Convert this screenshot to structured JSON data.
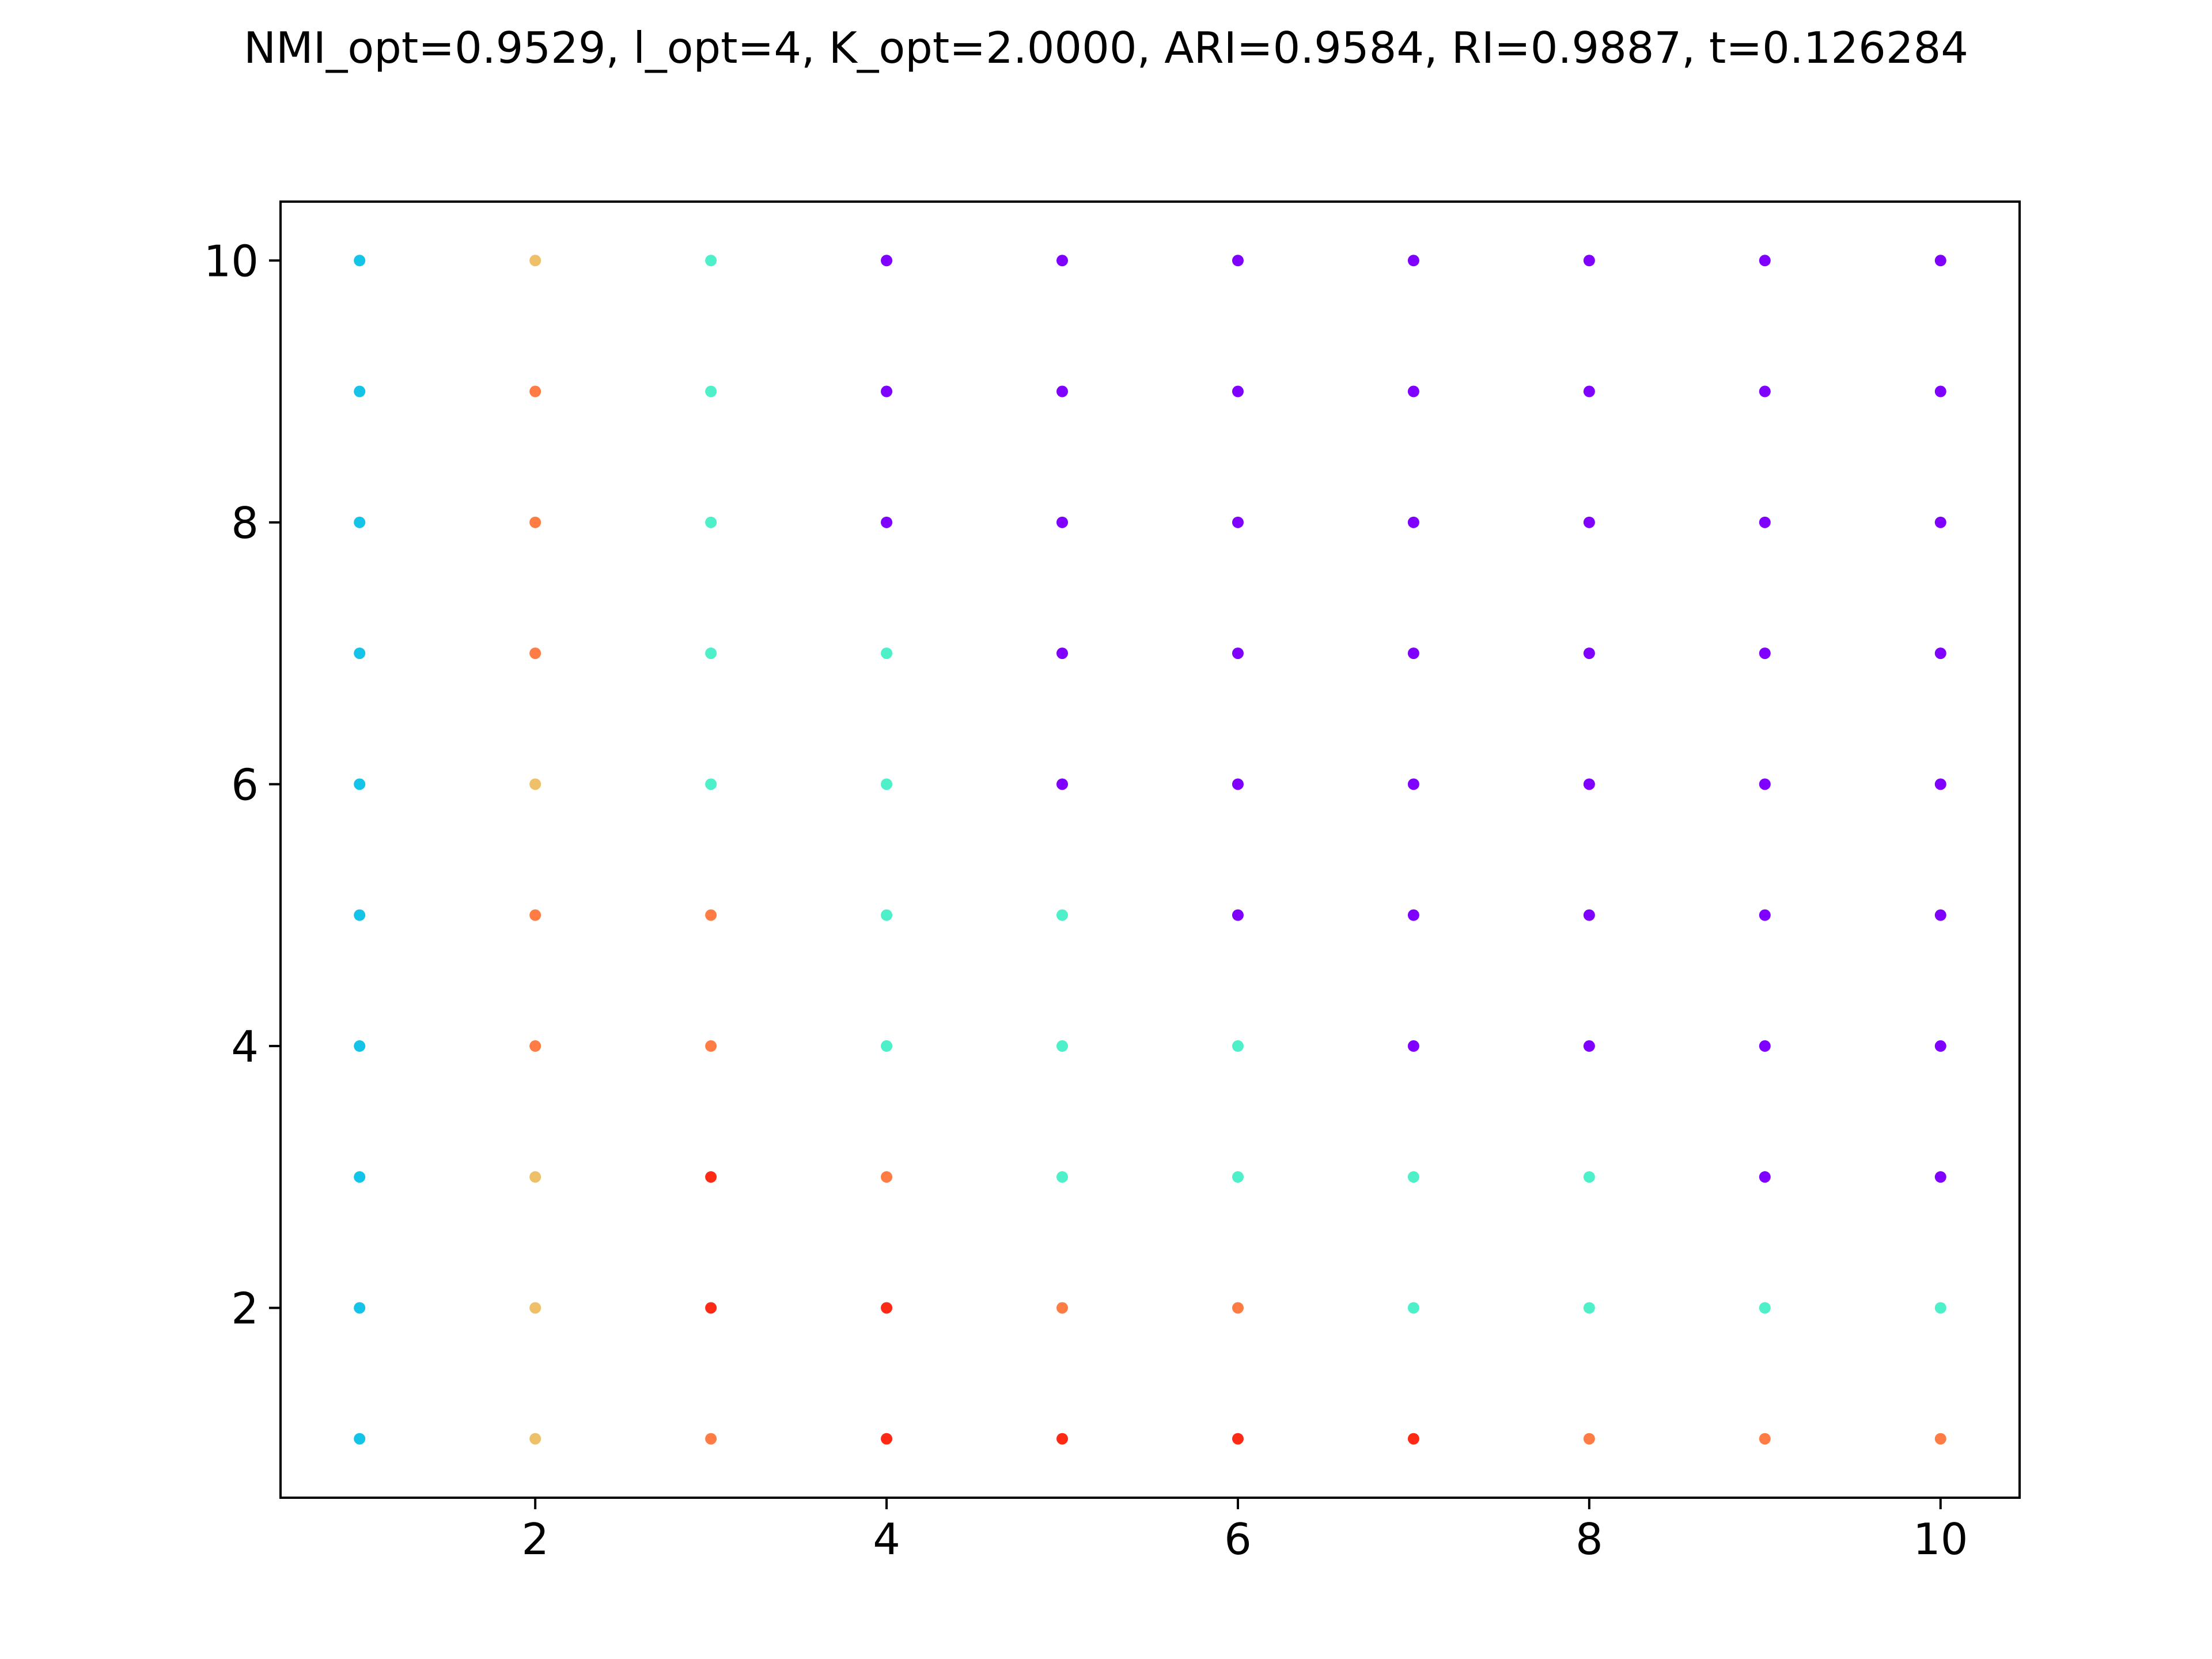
{
  "chart_data": {
    "type": "scatter",
    "title": "NMI_opt=0.9529, l_opt=4, K_opt=2.0000, ARI=0.9584, RI=0.9887, t=0.126284",
    "xlabel": "",
    "ylabel": "",
    "xlim": [
      0.55,
      10.45
    ],
    "ylim": [
      0.55,
      10.45
    ],
    "xticks": [
      "2",
      "4",
      "6",
      "8",
      "10"
    ],
    "xtick_values": [
      2,
      4,
      6,
      8,
      10
    ],
    "yticks": [
      "2",
      "4",
      "6",
      "8",
      "10"
    ],
    "ytick_values": [
      2,
      4,
      6,
      8,
      10
    ],
    "grid": false,
    "legend": "none",
    "x": [
      1,
      2,
      3,
      4,
      5,
      6,
      7,
      8,
      9,
      10
    ],
    "y_top_to_bottom": [
      10,
      9,
      8,
      7,
      6,
      5,
      4,
      3,
      2,
      1
    ],
    "palette": {
      "purple": "#8000ff",
      "blue": "#14c4e8",
      "cyan": "#4ef0c9",
      "yellow": "#eec06a",
      "orange": "#ff7d45",
      "red": "#ff2a16"
    },
    "point_colors": [
      [
        "blue",
        "yellow",
        "cyan",
        "purple",
        "purple",
        "purple",
        "purple",
        "purple",
        "purple",
        "purple"
      ],
      [
        "blue",
        "orange",
        "cyan",
        "purple",
        "purple",
        "purple",
        "purple",
        "purple",
        "purple",
        "purple"
      ],
      [
        "blue",
        "orange",
        "cyan",
        "purple",
        "purple",
        "purple",
        "purple",
        "purple",
        "purple",
        "purple"
      ],
      [
        "blue",
        "orange",
        "cyan",
        "cyan",
        "purple",
        "purple",
        "purple",
        "purple",
        "purple",
        "purple"
      ],
      [
        "blue",
        "yellow",
        "cyan",
        "cyan",
        "purple",
        "purple",
        "purple",
        "purple",
        "purple",
        "purple"
      ],
      [
        "blue",
        "orange",
        "orange",
        "cyan",
        "cyan",
        "purple",
        "purple",
        "purple",
        "purple",
        "purple"
      ],
      [
        "blue",
        "orange",
        "orange",
        "cyan",
        "cyan",
        "cyan",
        "purple",
        "purple",
        "purple",
        "purple"
      ],
      [
        "blue",
        "yellow",
        "red",
        "orange",
        "cyan",
        "cyan",
        "cyan",
        "cyan",
        "purple",
        "purple"
      ],
      [
        "blue",
        "yellow",
        "red",
        "red",
        "orange",
        "orange",
        "cyan",
        "cyan",
        "cyan",
        "cyan"
      ],
      [
        "blue",
        "yellow",
        "orange",
        "red",
        "red",
        "red",
        "red",
        "orange",
        "orange",
        "orange"
      ]
    ]
  }
}
